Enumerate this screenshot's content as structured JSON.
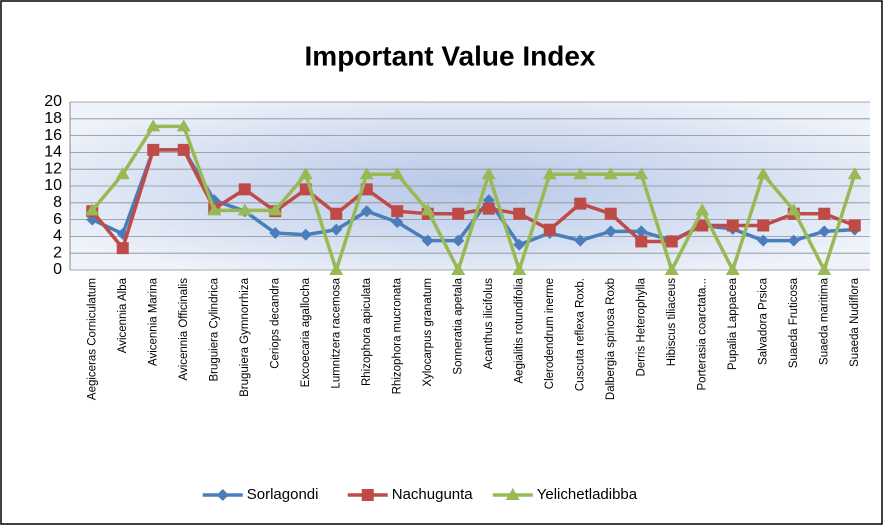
{
  "chart_data": {
    "type": "line",
    "title": "Important Value Index",
    "categories": [
      "Aegiceras Corniculatum",
      "Avicennia Alba",
      "Avicennia Marina",
      "Avicennia Officinalis",
      "Bruguiera Cylindrica",
      "Bruguiera Gymnorrhiza",
      "Ceriops decandra",
      "Excoecaria agallocha",
      "Lumnitzera racemosa",
      "Rhizophora apiculata",
      "Rhizophora mucronata",
      "Xylocarpus granatum",
      "Sonneratia apetala",
      "Acanthus ilicifolus",
      "Aegialitis rotundifolia",
      "Clerodendrum inerme",
      "Cuscuta reflexa Roxb.",
      "Dalbergia spinosa Roxb",
      "Derris Heterophylla",
      "Hibiscus tiliaceus",
      "Porterasia coarctata...",
      "Pupalia Lappacea",
      "Salvadora Prsica",
      "Suaeda Fruticosa",
      "Suaeda maritima",
      "Suaeda Nudiflora"
    ],
    "series": [
      {
        "name": "Sorlagondi",
        "color": "#4a7ebb",
        "marker": "diamond",
        "values": [
          6,
          4.3,
          14.3,
          14.3,
          8.3,
          7,
          4.4,
          4.2,
          4.8,
          7,
          5.7,
          3.5,
          3.5,
          8.3,
          3,
          4.4,
          3.5,
          4.6,
          4.6,
          3.5,
          5.3,
          4.9,
          3.5,
          3.5,
          4.6,
          4.8
        ]
      },
      {
        "name": "Nachugunta",
        "color": "#be4b48",
        "marker": "square",
        "values": [
          7,
          2.6,
          14.3,
          14.3,
          7.3,
          9.6,
          7,
          9.6,
          6.7,
          9.6,
          7,
          6.7,
          6.7,
          7.3,
          6.7,
          4.8,
          7.9,
          6.7,
          3.4,
          3.4,
          5.3,
          5.3,
          5.3,
          6.7,
          6.7,
          5.3
        ]
      },
      {
        "name": "Yelichetladibba",
        "color": "#98b954",
        "marker": "triangle",
        "values": [
          7.1,
          11.4,
          17.1,
          17.1,
          7.1,
          7.1,
          7.1,
          11.4,
          0,
          11.4,
          11.4,
          7.1,
          0,
          11.4,
          0,
          11.4,
          11.4,
          11.4,
          11.4,
          0,
          7.1,
          0,
          11.4,
          7.1,
          0,
          11.4
        ]
      }
    ],
    "ylim": [
      0,
      20
    ],
    "yticks": [
      0,
      2,
      4,
      6,
      8,
      10,
      12,
      14,
      16,
      18,
      20
    ],
    "grid": true,
    "legend": "bottom"
  }
}
